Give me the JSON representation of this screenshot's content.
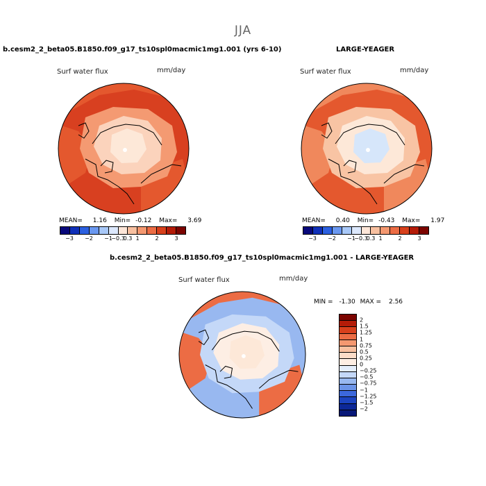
{
  "season": "JJA",
  "chart_data": [
    {
      "type": "heatmap",
      "title": "b.cesm2_2_beta05.B1850.f09_g17_ts10spl0macmic1mg1.001 (yrs 6-10)",
      "subtitle": "Surf water flux",
      "units": "mm/day",
      "stats": {
        "mean_label": "MEAN=",
        "mean": "1.16",
        "min_label": "Min=",
        "min": "-0.12",
        "max_label": "Max=",
        "max": "3.69"
      },
      "colorbar_ticks": [
        "−3",
        "−2",
        "−1",
        "−0.3",
        "0.3",
        "1",
        "2",
        "3"
      ],
      "colorbar_colors": [
        "#08087a",
        "#1030b8",
        "#2c60e0",
        "#6a98f0",
        "#a8c8f8",
        "#dce8fc",
        "#fde6d8",
        "#f8c0a0",
        "#f49870",
        "#ec6c44",
        "#d8401c",
        "#b41c08",
        "#7c0400"
      ],
      "regions": [
        "pole",
        "arctic",
        "subarctic",
        "continent",
        "ocean"
      ],
      "region_colors": [
        "#fde8d8",
        "#fbd3bc",
        "#f49a72",
        "#e4582e",
        "#d84020"
      ]
    },
    {
      "type": "heatmap",
      "title": "LARGE-YEAGER",
      "subtitle": "Surf water flux",
      "units": "mm/day",
      "stats": {
        "mean_label": "MEAN=",
        "mean": "0.40",
        "min_label": "Min=",
        "min": "-0.43",
        "max_label": "Max=",
        "max": "1.97"
      },
      "colorbar_ticks": [
        "−3",
        "−2",
        "−1",
        "−0.3",
        "0.3",
        "1",
        "2",
        "3"
      ],
      "colorbar_colors": [
        "#08087a",
        "#1030b8",
        "#2c60e0",
        "#6a98f0",
        "#a8c8f8",
        "#dce8fc",
        "#fde6d8",
        "#f8c0a0",
        "#f49870",
        "#ec6c44",
        "#d8401c",
        "#b41c08",
        "#7c0400"
      ],
      "regions": [
        "pole",
        "arctic",
        "subarctic",
        "continent",
        "ocean"
      ],
      "region_colors": [
        "#d6e6fa",
        "#fde8d8",
        "#f8c4a4",
        "#f0885c",
        "#e4582e"
      ]
    },
    {
      "type": "heatmap",
      "title": "b.cesm2_2_beta05.B1850.f09_g17_ts10spl0macmic1mg1.001 - LARGE-YEAGER",
      "subtitle": "Surf water flux",
      "units": "mm/day",
      "stats": {
        "min_label": "MIN =",
        "min": "-1.30",
        "max_label": "MAX =",
        "max": "2.56"
      },
      "colorbar_ticks": [
        "2",
        "1.5",
        "1.25",
        "1",
        "0.75",
        "0.5",
        "0.25",
        "0",
        "−0.25",
        "−0.5",
        "−0.75",
        "−1",
        "−1.25",
        "−1.5",
        "−2"
      ],
      "colorbar_colors": [
        "#7c0400",
        "#b41c08",
        "#d8401c",
        "#ec6c44",
        "#f49870",
        "#f8c0a0",
        "#fcdcc8",
        "#fdeee4",
        "#e4eefc",
        "#c4d8f8",
        "#98b8f0",
        "#6c94e8",
        "#3c68dc",
        "#1c44c0",
        "#0c2898",
        "#081878"
      ],
      "regions": [
        "pole",
        "arctic",
        "subarctic",
        "continent",
        "ocean"
      ],
      "region_colors": [
        "#fde8d8",
        "#fdeee4",
        "#c4d8f8",
        "#ec6c44",
        "#98b8f0"
      ]
    }
  ]
}
